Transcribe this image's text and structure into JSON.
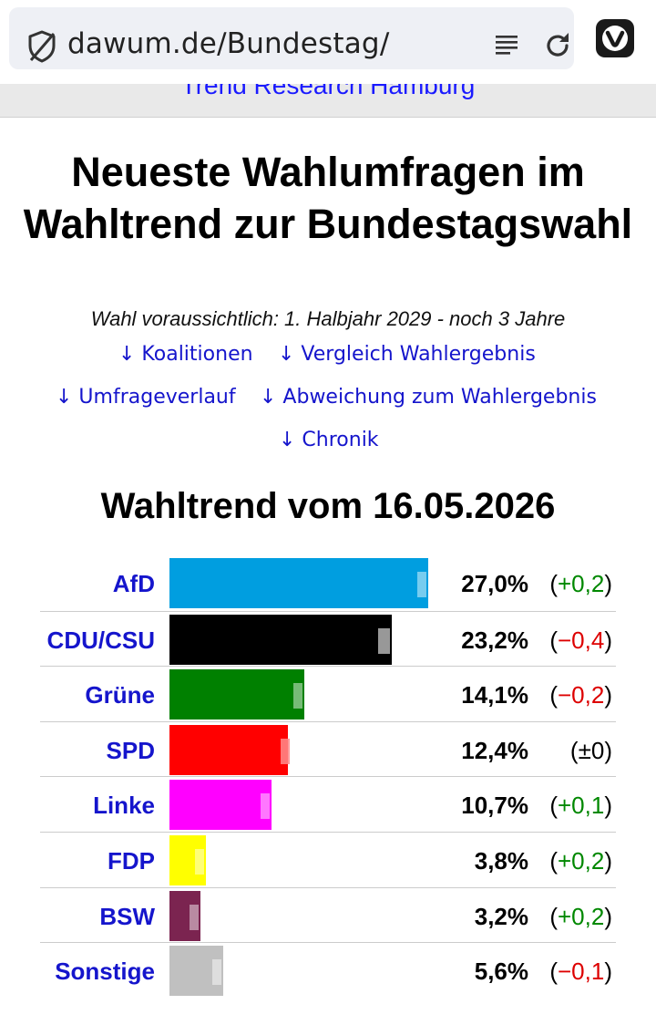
{
  "browser": {
    "url": "dawum.de/Bundestag/",
    "icons": [
      "shield-icon",
      "reader-mode-icon",
      "reload-icon",
      "vivaldi-logo-icon"
    ]
  },
  "header_strip": {
    "text": "Trend Research Hamburg"
  },
  "page": {
    "title": "Neueste Wahlumfragen im Wahltrend zur Bundestagswahl",
    "subtitle": "Wahl voraussichtlich: 1. Halbjahr 2029 - noch 3 Jahre",
    "nav": {
      "koalitionen": "↓ Koalitionen",
      "vergleich": "↓ Vergleich Wahlergebnis",
      "umfrageverlauf": "↓ Umfrageverlauf",
      "abweichung": "↓ Abweichung zum Wahlergebnis",
      "chronik": "↓ Chronik"
    },
    "section_title": "Wahltrend vom 16.05.2026"
  },
  "chart_data": {
    "type": "bar",
    "orientation": "horizontal",
    "categories": [
      "AfD",
      "CDU/CSU",
      "Grüne",
      "SPD",
      "Linke",
      "FDP",
      "BSW",
      "Sonstige"
    ],
    "values": [
      27.0,
      23.2,
      14.1,
      12.4,
      10.7,
      3.8,
      3.2,
      5.6
    ],
    "changes": [
      0.2,
      -0.4,
      -0.2,
      0,
      0.1,
      0.2,
      0.2,
      -0.1
    ],
    "colors": [
      "#009ee0",
      "#000000",
      "#008000",
      "#ff0000",
      "#ff00ff",
      "#ffff00",
      "#7b2450",
      "#c0c0c0"
    ],
    "rows": [
      {
        "party": "AfD",
        "pct": "27,0%",
        "change": "+0,2"
      },
      {
        "party": "CDU/CSU",
        "pct": "23,2%",
        "change": "−0,4"
      },
      {
        "party": "Grüne",
        "pct": "14,1%",
        "change": "−0,2"
      },
      {
        "party": "SPD",
        "pct": "12,4%",
        "change": "±0"
      },
      {
        "party": "Linke",
        "pct": "10,7%",
        "change": "+0,1"
      },
      {
        "party": "FDP",
        "pct": "3,8%",
        "change": "+0,2"
      },
      {
        "party": "BSW",
        "pct": "3,2%",
        "change": "+0,2"
      },
      {
        "party": "Sonstige",
        "pct": "5,6%",
        "change": "−0,1"
      }
    ]
  }
}
